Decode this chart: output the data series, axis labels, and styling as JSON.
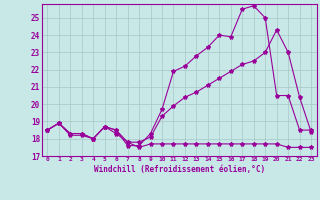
{
  "xlabel": "Windchill (Refroidissement éolien,°C)",
  "bg_color": "#c8e8e8",
  "grid_color": "#a8c8c8",
  "line_color": "#990099",
  "xlim": [
    -0.5,
    23.5
  ],
  "ylim": [
    17,
    25.8
  ],
  "xticks": [
    0,
    1,
    2,
    3,
    4,
    5,
    6,
    7,
    8,
    9,
    10,
    11,
    12,
    13,
    14,
    15,
    16,
    17,
    18,
    19,
    20,
    21,
    22,
    23
  ],
  "yticks": [
    17,
    18,
    19,
    20,
    21,
    22,
    23,
    24,
    25
  ],
  "line1_x": [
    0,
    1,
    2,
    3,
    4,
    5,
    6,
    7,
    8,
    9,
    10,
    11,
    12,
    13,
    14,
    15,
    16,
    17,
    18,
    19,
    20,
    21,
    22,
    23
  ],
  "line1_y": [
    18.5,
    18.9,
    18.3,
    18.3,
    18.0,
    18.7,
    18.5,
    17.6,
    17.6,
    18.3,
    19.7,
    21.9,
    22.2,
    22.8,
    23.3,
    24.0,
    23.9,
    25.5,
    25.7,
    25.0,
    20.5,
    20.5,
    18.5,
    18.5
  ],
  "line2_x": [
    0,
    1,
    2,
    3,
    4,
    5,
    6,
    7,
    8,
    9,
    10,
    11,
    12,
    13,
    14,
    15,
    16,
    17,
    18,
    19,
    20,
    21,
    22,
    23
  ],
  "line2_y": [
    18.5,
    18.9,
    18.2,
    18.2,
    18.0,
    18.7,
    18.3,
    17.8,
    17.5,
    17.7,
    17.7,
    17.7,
    17.7,
    17.7,
    17.7,
    17.7,
    17.7,
    17.7,
    17.7,
    17.7,
    17.7,
    17.5,
    17.5,
    17.5
  ],
  "line3_x": [
    0,
    1,
    2,
    3,
    4,
    5,
    6,
    7,
    8,
    9,
    10,
    11,
    12,
    13,
    14,
    15,
    16,
    17,
    18,
    19,
    20,
    21,
    22,
    23
  ],
  "line3_y": [
    18.5,
    18.9,
    18.3,
    18.3,
    18.0,
    18.7,
    18.5,
    17.8,
    17.8,
    18.1,
    19.3,
    19.9,
    20.4,
    20.7,
    21.1,
    21.5,
    21.9,
    22.3,
    22.5,
    23.0,
    24.3,
    23.0,
    20.4,
    18.4
  ],
  "marker": "*",
  "markersize": 3
}
